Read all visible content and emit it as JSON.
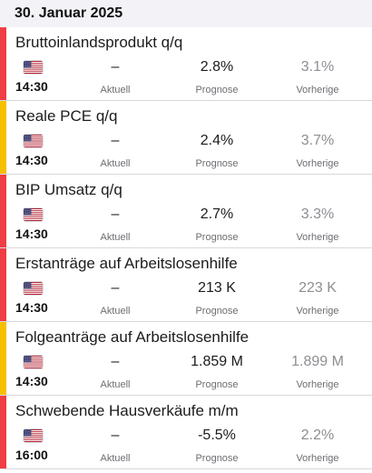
{
  "date": "30. Januar 2025",
  "labels": {
    "actual": "Aktuell",
    "forecast": "Prognose",
    "previous": "Vorherige"
  },
  "colors": {
    "high": "#ef3e44",
    "medium": "#f5c000"
  },
  "flag_icon": "us-flag-icon",
  "events": [
    {
      "title": "Bruttoinlandsprodukt q/q",
      "time": "14:30",
      "actual": "–",
      "forecast": "2.8%",
      "previous": "3.1%",
      "importance": "high"
    },
    {
      "title": "Reale PCE q/q",
      "time": "14:30",
      "actual": "–",
      "forecast": "2.4%",
      "previous": "3.7%",
      "importance": "medium"
    },
    {
      "title": "BIP Umsatz q/q",
      "time": "14:30",
      "actual": "–",
      "forecast": "2.7%",
      "previous": "3.3%",
      "importance": "high"
    },
    {
      "title": "Erstanträge auf Arbeitslosenhilfe",
      "time": "14:30",
      "actual": "–",
      "forecast": "213 K",
      "previous": "223 K",
      "importance": "high"
    },
    {
      "title": "Folgeanträge auf Arbeitslosenhilfe",
      "time": "14:30",
      "actual": "–",
      "forecast": "1.859 M",
      "previous": "1.899 M",
      "importance": "medium"
    },
    {
      "title": "Schwebende Hausverkäufe m/m",
      "time": "16:00",
      "actual": "–",
      "forecast": "-5.5%",
      "previous": "2.2%",
      "importance": "high"
    }
  ]
}
